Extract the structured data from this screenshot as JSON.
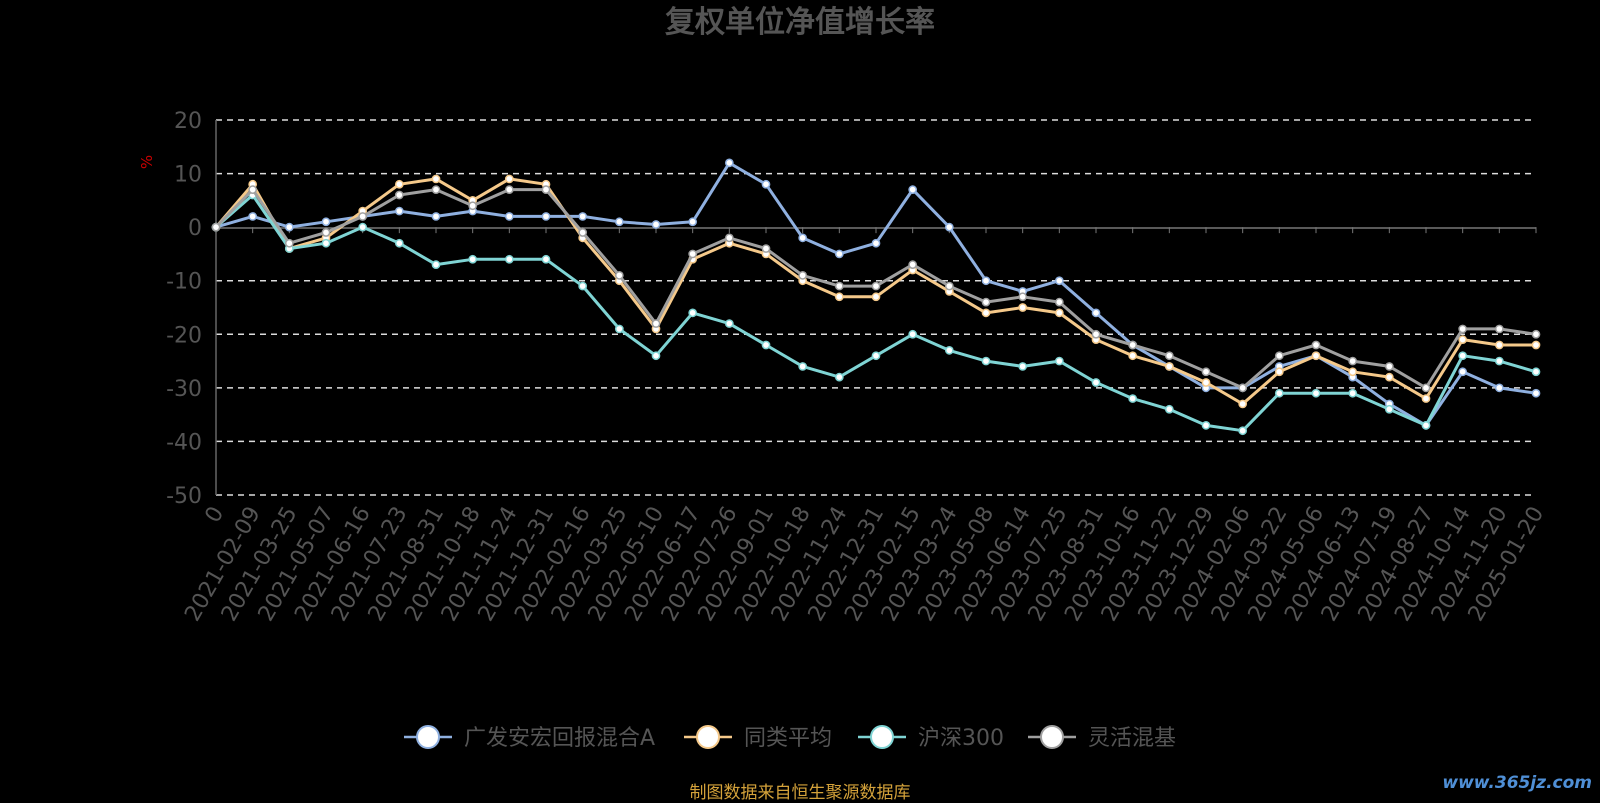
{
  "chart_data": {
    "type": "line",
    "title": "复权单位净值增长率",
    "ylabel": "%",
    "ylim": [
      -50,
      20
    ],
    "yticks": [
      20,
      10,
      0,
      -10,
      -20,
      -30,
      -40,
      -50
    ],
    "grid": true,
    "legend_position": "bottom",
    "categories": [
      "0",
      "2021-02-09",
      "2021-03-25",
      "2021-05-07",
      "2021-06-16",
      "2021-07-23",
      "2021-08-31",
      "2021-10-18",
      "2021-11-24",
      "2021-12-31",
      "2022-02-16",
      "2022-03-25",
      "2022-05-10",
      "2022-06-17",
      "2022-07-26",
      "2022-09-01",
      "2022-10-18",
      "2022-11-24",
      "2022-12-31",
      "2023-02-15",
      "2023-03-24",
      "2023-05-08",
      "2023-06-14",
      "2023-07-25",
      "2023-08-31",
      "2023-10-16",
      "2023-11-22",
      "2023-12-29",
      "2024-02-06",
      "2024-03-22",
      "2024-05-06",
      "2024-06-13",
      "2024-07-19",
      "2024-08-27",
      "2024-10-14",
      "2024-11-20",
      "2025-01-20"
    ],
    "series": [
      {
        "name": "广发安宏回报混合A",
        "color": "#8fb0e0",
        "values": [
          0,
          2,
          0,
          1,
          2,
          3,
          2,
          3,
          2,
          2,
          2,
          1,
          0.5,
          1,
          12,
          8,
          -2,
          -5,
          -3,
          7,
          0,
          -10,
          -12,
          -10,
          -16,
          -22,
          -26,
          -30,
          -30,
          -26,
          -24,
          -28,
          -33,
          -37,
          -27,
          -30,
          -31
        ]
      },
      {
        "name": "同类平均",
        "color": "#f5c98a",
        "values": [
          0,
          8,
          -4,
          -2,
          3,
          8,
          9,
          5,
          9,
          8,
          -2,
          -10,
          -19,
          -6,
          -3,
          -5,
          -10,
          -13,
          -13,
          -8,
          -12,
          -16,
          -15,
          -16,
          -21,
          -24,
          -26,
          -29,
          -33,
          -27,
          -24,
          -27,
          -28,
          -32,
          -21,
          -22,
          -22
        ]
      },
      {
        "name": "沪深300",
        "color": "#7fd4d4",
        "values": [
          0,
          6,
          -4,
          -3,
          0,
          -3,
          -7,
          -6,
          -6,
          -6,
          -11,
          -19,
          -24,
          -16,
          -18,
          -22,
          -26,
          -28,
          -24,
          -20,
          -23,
          -25,
          -26,
          -25,
          -29,
          -32,
          -34,
          -37,
          -38,
          -31,
          -31,
          -31,
          -34,
          -37,
          -24,
          -25,
          -27
        ]
      },
      {
        "name": "灵活混基",
        "color": "#a0a0a0",
        "values": [
          0,
          7,
          -3,
          -1,
          2,
          6,
          7,
          4,
          7,
          7,
          -1,
          -9,
          -18,
          -5,
          -2,
          -4,
          -9,
          -11,
          -11,
          -7,
          -11,
          -14,
          -13,
          -14,
          -20,
          -22,
          -24,
          -27,
          -30,
          -24,
          -22,
          -25,
          -26,
          -30,
          -19,
          -19,
          -20
        ]
      }
    ]
  },
  "footer": {
    "source_text": "制图数据来自恒生聚源数据库",
    "watermark": "www.365jz.com"
  }
}
